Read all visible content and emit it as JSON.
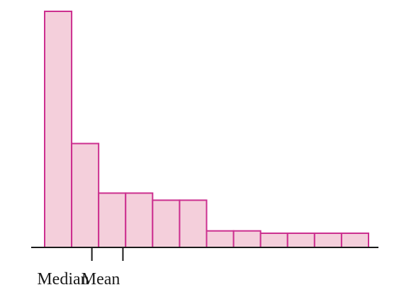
{
  "chart_data": {
    "type": "bar",
    "title": "",
    "xlabel": "",
    "ylabel": "",
    "x_axis": {
      "ticks_visible": false,
      "tick_labels_visible": false
    },
    "y_axis": {
      "visible": false
    },
    "grid": false,
    "bins": 12,
    "relative_heights": [
      1.0,
      0.44,
      0.23,
      0.23,
      0.2,
      0.2,
      0.07,
      0.07,
      0.06,
      0.06,
      0.06,
      0.06
    ],
    "markers": [
      {
        "label": "Median",
        "x_bin_position": 1.75
      },
      {
        "label": "Mean",
        "x_bin_position": 2.9
      }
    ],
    "colors": {
      "bar_fill": "#f4cfdb",
      "bar_stroke": "#cc2f8f",
      "axis": "#1a1a1a"
    }
  }
}
